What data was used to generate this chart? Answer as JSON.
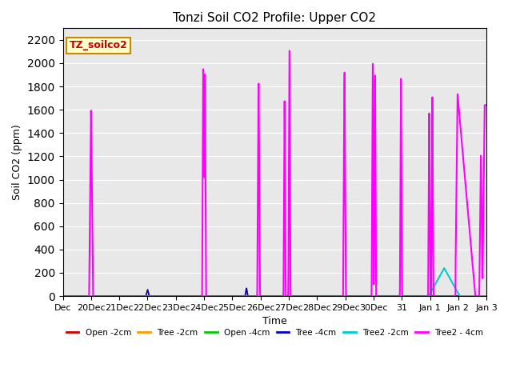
{
  "title": "Tonzi Soil CO2 Profile: Upper CO2",
  "xlabel": "Time",
  "ylabel": "Soil CO2 (ppm)",
  "ylim": [
    0,
    2300
  ],
  "yticks": [
    0,
    200,
    400,
    600,
    800,
    1000,
    1200,
    1400,
    1600,
    1800,
    2000,
    2200
  ],
  "bg_color": "#e8e8e8",
  "legend_label": "TZ_soilco2",
  "series": {
    "Open_2cm": {
      "color": "#cc0000",
      "lw": 1.2
    },
    "Tree_2cm": {
      "color": "#ff9900",
      "lw": 1.2
    },
    "Open_4cm": {
      "color": "#00cc00",
      "lw": 1.2
    },
    "Tree_4cm": {
      "color": "#0000bb",
      "lw": 1.2
    },
    "Tree2_2cm": {
      "color": "#00cccc",
      "lw": 1.5
    },
    "Tree2_4cm": {
      "color": "#ff00ff",
      "lw": 1.5
    }
  },
  "legend_entries": [
    "Open -2cm",
    "Tree -2cm",
    "Open -4cm",
    "Tree -4cm",
    "Tree2 -2cm",
    "Tree2 - 4cm"
  ],
  "xtick_labels": [
    "Dec",
    "20Dec",
    "21Dec",
    "22Dec",
    "23Dec",
    "24Dec",
    "25Dec",
    "26Dec",
    "27Dec",
    "28Dec",
    "29Dec",
    "30Dec",
    "31",
    "Jan 1",
    "Jan 2",
    "Jan 3"
  ],
  "tick_positions": [
    0,
    1,
    2,
    3,
    4,
    5,
    6,
    7,
    8,
    9,
    10,
    11,
    12,
    13,
    14,
    15
  ],
  "note_box": {
    "facecolor": "#ffffcc",
    "edgecolor": "#cc8800",
    "textcolor": "#cc0000"
  }
}
